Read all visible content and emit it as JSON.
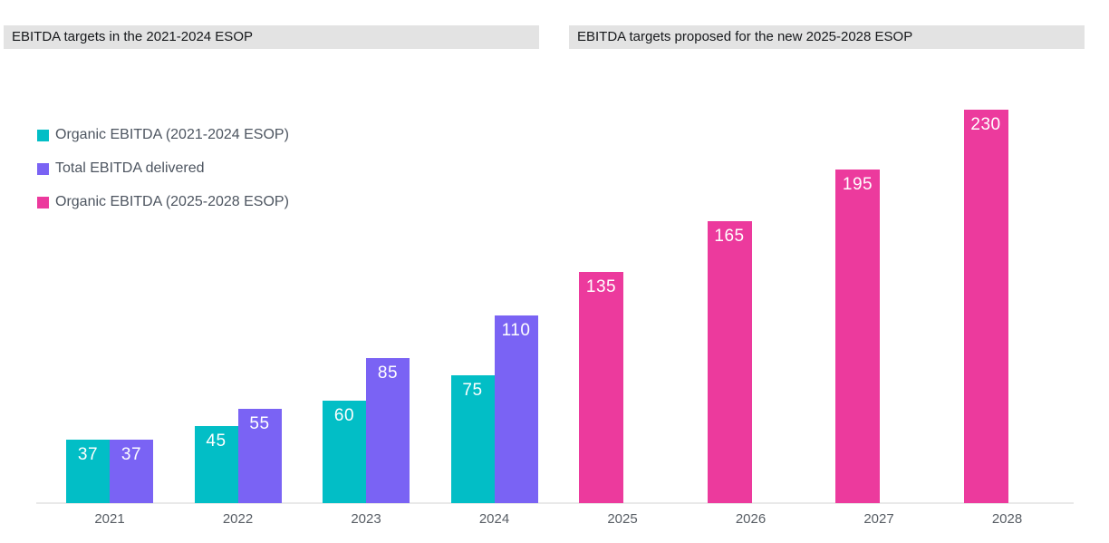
{
  "headers": {
    "left": "EBITDA targets in the 2021-2024 ESOP",
    "right": "EBITDA targets proposed for the new 2025-2028 ESOP",
    "background": "#e3e3e3",
    "text_color": "#17191c"
  },
  "legend": {
    "items": [
      {
        "label": "Organic EBITDA (2021-2024 ESOP)",
        "color": "#02BEC6",
        "swatch": "teal-square"
      },
      {
        "label": "Total EBITDA delivered",
        "color": "#7A63F4",
        "swatch": "purple-square"
      },
      {
        "label": "Organic EBITDA (2025-2028 ESOP)",
        "color": "#EC3A9D",
        "swatch": "pink-square"
      }
    ],
    "text_color": "#4d5560"
  },
  "chart_data": {
    "type": "bar",
    "title_left": "EBITDA targets in the 2021-2024 ESOP",
    "title_right": "EBITDA targets proposed for the new 2025-2028 ESOP",
    "categories": [
      "2021",
      "2022",
      "2023",
      "2024",
      "2025",
      "2026",
      "2027",
      "2028"
    ],
    "series": [
      {
        "name": "Organic EBITDA (2021-2024 ESOP)",
        "color": "#02BEC6",
        "values": [
          37,
          45,
          60,
          75,
          null,
          null,
          null,
          null
        ]
      },
      {
        "name": "Total EBITDA delivered",
        "color": "#7A63F4",
        "values": [
          37,
          55,
          85,
          110,
          null,
          null,
          null,
          null
        ]
      },
      {
        "name": "Organic EBITDA (2025-2028 ESOP)",
        "color": "#EC3A9D",
        "values": [
          null,
          null,
          null,
          null,
          135,
          165,
          195,
          230
        ]
      }
    ],
    "value_labels": true,
    "value_labels_color": "#ffffff",
    "axis": {
      "line_color": "#e9e9e9",
      "label_color": "#575d64"
    },
    "ylim": [
      0,
      245
    ],
    "grid": false,
    "legend_position": "top-left"
  }
}
